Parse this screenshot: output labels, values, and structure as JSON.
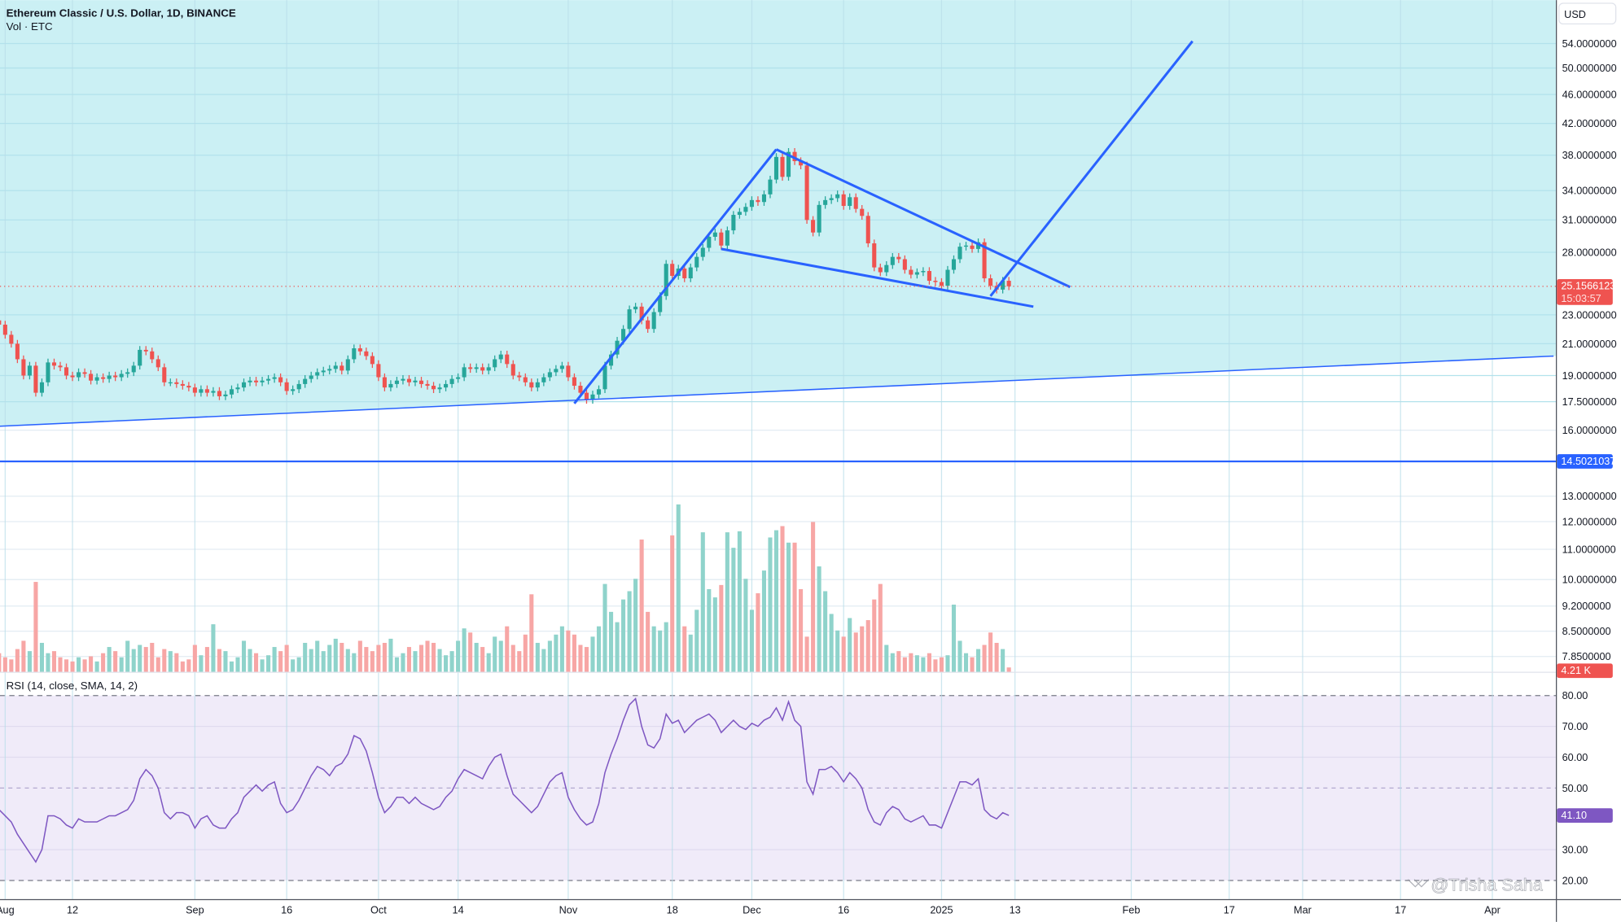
{
  "header": {
    "title": "Ethereum Classic / U.S. Dollar, 1D, BINANCE",
    "volume_legend": "Vol · ETC"
  },
  "rsi_legend": "RSI (14, close, SMA, 14, 2)",
  "currency_button": "USD",
  "watermark": "@Trisha Saha",
  "badges": {
    "last_price": "25.1566123",
    "countdown": "15:03:57",
    "hline_price": "14.5021037",
    "last_volume": "4.21 K",
    "last_rsi": "41.10"
  },
  "colors": {
    "up": "#26a69a",
    "down": "#ef5350",
    "volume_up": "#8fd3cb",
    "volume_down": "#f7a6a5",
    "drawing": "#2962ff",
    "rsi_line": "#7e57c2",
    "rsi_band": "#f0ebf9",
    "zone_fill": "#cbf0f4"
  },
  "chart_data": {
    "type": "candlestick",
    "symbol": "ETC/USD",
    "interval": "1D",
    "price_scale": "log",
    "price_ticks": [
      54,
      50,
      46,
      42,
      38,
      34,
      31,
      28,
      23,
      21,
      19,
      17.5,
      16,
      13,
      12,
      11,
      10,
      9.2,
      8.5,
      7.85
    ],
    "price_tick_labels": [
      "54.0000000",
      "50.0000000",
      "46.0000000",
      "42.0000000",
      "38.0000000",
      "34.0000000",
      "31.0000000",
      "28.0000000",
      "23.0000000",
      "21.0000000",
      "19.0000000",
      "17.5000000",
      "16.0000000",
      "13.0000000",
      "12.0000000",
      "11.0000000",
      "10.0000000",
      "9.2000000",
      "8.5000000",
      "7.8500000"
    ],
    "rsi_ticks": [
      80,
      70,
      60,
      50,
      30,
      20
    ],
    "rsi_tick_labels": [
      "80.00",
      "70.00",
      "60.00",
      "50.00",
      "30.00",
      "20.00"
    ],
    "time_ticks": [
      {
        "label": "Aug",
        "date": "2024-08-01"
      },
      {
        "label": "12",
        "date": "2024-08-12"
      },
      {
        "label": "Sep",
        "date": "2024-09-01"
      },
      {
        "label": "16",
        "date": "2024-09-16"
      },
      {
        "label": "Oct",
        "date": "2024-10-01"
      },
      {
        "label": "14",
        "date": "2024-10-14"
      },
      {
        "label": "Nov",
        "date": "2024-11-01"
      },
      {
        "label": "18",
        "date": "2024-11-18"
      },
      {
        "label": "Dec",
        "date": "2024-12-01"
      },
      {
        "label": "16",
        "date": "2024-12-16"
      },
      {
        "label": "2025",
        "date": "2025-01-01"
      },
      {
        "label": "13",
        "date": "2025-01-13"
      },
      {
        "label": "Feb",
        "date": "2025-02-01"
      },
      {
        "label": "17",
        "date": "2025-02-17"
      },
      {
        "label": "Mar",
        "date": "2025-03-01"
      },
      {
        "label": "17",
        "date": "2025-03-17"
      },
      {
        "label": "Apr",
        "date": "2025-04-01"
      }
    ],
    "last_price": 25.1566123,
    "horizontal_line": 14.5021037,
    "trendlines": [
      {
        "name": "support",
        "from": [
          "2024-07-31",
          16.2
        ],
        "to": [
          "2025-04-11",
          20.2
        ],
        "fill_above": true
      },
      {
        "name": "rally",
        "from": [
          "2024-11-02",
          17.4
        ],
        "to": [
          "2024-12-05",
          38.7
        ]
      },
      {
        "name": "wedge-upper",
        "from": [
          "2024-12-05",
          38.7
        ],
        "to": [
          "2025-01-22",
          25.1
        ]
      },
      {
        "name": "wedge-lower",
        "from": [
          "2024-11-26",
          28.3
        ],
        "to": [
          "2025-01-16",
          23.6
        ]
      },
      {
        "name": "projection",
        "from": [
          "2025-01-09",
          24.4
        ],
        "to": [
          "2025-02-11",
          54.4
        ]
      }
    ],
    "columns": [
      "date",
      "close",
      "volume_k",
      "rsi"
    ],
    "candles": [
      [
        "2024-07-31",
        22.3,
        18,
        43
      ],
      [
        "2024-08-01",
        21.6,
        14,
        41
      ],
      [
        "2024-08-02",
        21.0,
        12,
        39
      ],
      [
        "2024-08-03",
        20.0,
        22,
        35
      ],
      [
        "2024-08-04",
        19.0,
        30,
        32
      ],
      [
        "2024-08-05",
        19.6,
        20,
        29
      ],
      [
        "2024-08-06",
        18.0,
        87,
        26
      ],
      [
        "2024-08-07",
        18.6,
        28,
        30
      ],
      [
        "2024-08-08",
        19.8,
        18,
        41
      ],
      [
        "2024-08-09",
        19.6,
        20,
        41
      ],
      [
        "2024-08-10",
        19.5,
        14,
        40
      ],
      [
        "2024-08-11",
        19.0,
        12,
        38
      ],
      [
        "2024-08-12",
        18.9,
        10,
        37
      ],
      [
        "2024-08-13",
        19.2,
        14,
        40
      ],
      [
        "2024-08-14",
        19.1,
        12,
        39
      ],
      [
        "2024-08-15",
        18.7,
        15,
        39
      ],
      [
        "2024-08-16",
        18.9,
        10,
        39
      ],
      [
        "2024-08-17",
        18.8,
        18,
        40
      ],
      [
        "2024-08-18",
        19.0,
        24,
        41
      ],
      [
        "2024-08-19",
        18.9,
        20,
        41
      ],
      [
        "2024-08-20",
        19.1,
        14,
        42
      ],
      [
        "2024-08-21",
        19.2,
        30,
        43
      ],
      [
        "2024-08-22",
        19.6,
        22,
        46
      ],
      [
        "2024-08-23",
        20.6,
        26,
        53
      ],
      [
        "2024-08-24",
        20.5,
        24,
        56
      ],
      [
        "2024-08-25",
        20.0,
        28,
        54
      ],
      [
        "2024-08-26",
        19.5,
        14,
        50
      ],
      [
        "2024-08-27",
        18.6,
        22,
        42
      ],
      [
        "2024-08-28",
        18.6,
        20,
        40
      ],
      [
        "2024-08-29",
        18.5,
        18,
        42
      ],
      [
        "2024-08-30",
        18.4,
        10,
        42
      ],
      [
        "2024-08-31",
        18.3,
        12,
        41
      ],
      [
        "2024-09-01",
        18.0,
        26,
        37
      ],
      [
        "2024-09-02",
        18.2,
        16,
        40
      ],
      [
        "2024-09-03",
        18.0,
        24,
        41
      ],
      [
        "2024-09-04",
        18.1,
        46,
        38
      ],
      [
        "2024-09-05",
        17.8,
        22,
        37
      ],
      [
        "2024-09-06",
        17.9,
        20,
        37
      ],
      [
        "2024-09-07",
        18.2,
        10,
        40
      ],
      [
        "2024-09-08",
        18.3,
        14,
        42
      ],
      [
        "2024-09-09",
        18.6,
        30,
        47
      ],
      [
        "2024-09-10",
        18.7,
        22,
        49
      ],
      [
        "2024-09-11",
        18.6,
        18,
        51
      ],
      [
        "2024-09-12",
        18.7,
        12,
        49
      ],
      [
        "2024-09-13",
        18.8,
        16,
        51
      ],
      [
        "2024-09-14",
        18.9,
        24,
        52
      ],
      [
        "2024-09-15",
        18.6,
        20,
        45
      ],
      [
        "2024-09-16",
        18.1,
        26,
        42
      ],
      [
        "2024-09-17",
        18.2,
        12,
        43
      ],
      [
        "2024-09-18",
        18.5,
        14,
        46
      ],
      [
        "2024-09-19",
        18.8,
        28,
        50
      ],
      [
        "2024-09-20",
        19.0,
        22,
        54
      ],
      [
        "2024-09-21",
        19.2,
        30,
        57
      ],
      [
        "2024-09-22",
        19.3,
        20,
        56
      ],
      [
        "2024-09-23",
        19.4,
        26,
        54
      ],
      [
        "2024-09-24",
        19.6,
        32,
        57
      ],
      [
        "2024-09-25",
        19.3,
        28,
        58
      ],
      [
        "2024-09-26",
        20.0,
        22,
        61
      ],
      [
        "2024-09-27",
        20.7,
        18,
        67
      ],
      [
        "2024-09-28",
        20.5,
        30,
        66
      ],
      [
        "2024-09-29",
        20.2,
        24,
        62
      ],
      [
        "2024-09-30",
        19.7,
        20,
        55
      ],
      [
        "2024-10-01",
        18.9,
        26,
        47
      ],
      [
        "2024-10-02",
        18.3,
        28,
        42
      ],
      [
        "2024-10-03",
        18.5,
        32,
        44
      ],
      [
        "2024-10-04",
        18.7,
        14,
        47
      ],
      [
        "2024-10-05",
        18.8,
        18,
        47
      ],
      [
        "2024-10-06",
        18.6,
        24,
        45
      ],
      [
        "2024-10-07",
        18.7,
        20,
        47
      ],
      [
        "2024-10-08",
        18.5,
        26,
        45
      ],
      [
        "2024-10-09",
        18.4,
        30,
        44
      ],
      [
        "2024-10-10",
        18.2,
        28,
        43
      ],
      [
        "2024-10-11",
        18.3,
        22,
        44
      ],
      [
        "2024-10-12",
        18.5,
        16,
        47
      ],
      [
        "2024-10-13",
        18.8,
        20,
        49
      ],
      [
        "2024-10-14",
        18.9,
        30,
        53
      ],
      [
        "2024-10-15",
        19.5,
        42,
        56
      ],
      [
        "2024-10-16",
        19.4,
        38,
        55
      ],
      [
        "2024-10-17",
        19.5,
        28,
        54
      ],
      [
        "2024-10-18",
        19.3,
        24,
        53
      ],
      [
        "2024-10-19",
        19.5,
        18,
        57
      ],
      [
        "2024-10-20",
        20.0,
        34,
        60
      ],
      [
        "2024-10-21",
        20.3,
        30,
        61
      ],
      [
        "2024-10-22",
        19.7,
        44,
        54
      ],
      [
        "2024-10-23",
        19.0,
        26,
        48
      ],
      [
        "2024-10-24",
        18.9,
        20,
        46
      ],
      [
        "2024-10-25",
        18.6,
        36,
        44
      ],
      [
        "2024-10-26",
        18.3,
        75,
        42
      ],
      [
        "2024-10-27",
        18.6,
        28,
        44
      ],
      [
        "2024-10-28",
        18.9,
        22,
        48
      ],
      [
        "2024-10-29",
        19.2,
        30,
        52
      ],
      [
        "2024-10-30",
        19.4,
        36,
        54
      ],
      [
        "2024-10-31",
        19.6,
        44,
        55
      ],
      [
        "2024-11-01",
        18.9,
        40,
        47
      ],
      [
        "2024-11-02",
        18.4,
        36,
        43
      ],
      [
        "2024-11-03",
        18.0,
        26,
        40
      ],
      [
        "2024-11-04",
        17.6,
        24,
        38
      ],
      [
        "2024-11-05",
        17.9,
        34,
        39
      ],
      [
        "2024-11-06",
        18.2,
        44,
        45
      ],
      [
        "2024-11-07",
        19.6,
        85,
        55
      ],
      [
        "2024-11-08",
        20.3,
        58,
        61
      ],
      [
        "2024-11-09",
        21.2,
        48,
        66
      ],
      [
        "2024-11-10",
        22.0,
        70,
        72
      ],
      [
        "2024-11-11",
        23.4,
        78,
        77
      ],
      [
        "2024-11-12",
        23.6,
        90,
        79
      ],
      [
        "2024-11-13",
        22.6,
        128,
        70
      ],
      [
        "2024-11-14",
        22.0,
        58,
        64
      ],
      [
        "2024-11-15",
        23.2,
        44,
        63
      ],
      [
        "2024-11-16",
        24.4,
        40,
        66
      ],
      [
        "2024-11-17",
        27.0,
        48,
        74
      ],
      [
        "2024-11-18",
        26.0,
        132,
        71
      ],
      [
        "2024-11-19",
        26.6,
        162,
        72
      ],
      [
        "2024-11-20",
        25.8,
        44,
        68
      ],
      [
        "2024-11-21",
        26.7,
        36,
        70
      ],
      [
        "2024-11-22",
        27.6,
        60,
        72
      ],
      [
        "2024-11-23",
        28.4,
        135,
        73
      ],
      [
        "2024-11-24",
        29.4,
        80,
        74
      ],
      [
        "2024-11-25",
        29.8,
        72,
        72
      ],
      [
        "2024-11-26",
        28.6,
        84,
        68
      ],
      [
        "2024-11-27",
        30.0,
        135,
        70
      ],
      [
        "2024-11-28",
        31.5,
        120,
        72
      ],
      [
        "2024-11-29",
        31.8,
        136,
        70
      ],
      [
        "2024-11-30",
        32.3,
        90,
        69
      ],
      [
        "2024-12-01",
        33.0,
        60,
        71
      ],
      [
        "2024-12-02",
        32.8,
        76,
        70
      ],
      [
        "2024-12-03",
        33.6,
        98,
        72
      ],
      [
        "2024-12-04",
        35.2,
        130,
        73
      ],
      [
        "2024-12-05",
        37.8,
        137,
        76
      ],
      [
        "2024-12-06",
        35.5,
        141,
        72
      ],
      [
        "2024-12-07",
        38.4,
        125,
        78
      ],
      [
        "2024-12-08",
        37.3,
        125,
        72
      ],
      [
        "2024-12-09",
        36.8,
        80,
        70
      ],
      [
        "2024-12-10",
        31.0,
        34,
        52
      ],
      [
        "2024-12-11",
        29.8,
        145,
        48
      ],
      [
        "2024-12-12",
        32.5,
        102,
        56
      ],
      [
        "2024-12-13",
        33.0,
        78,
        56
      ],
      [
        "2024-12-14",
        33.2,
        56,
        57
      ],
      [
        "2024-12-15",
        33.6,
        40,
        55
      ],
      [
        "2024-12-16",
        32.4,
        34,
        52
      ],
      [
        "2024-12-17",
        33.3,
        52,
        55
      ],
      [
        "2024-12-18",
        32.1,
        38,
        53
      ],
      [
        "2024-12-19",
        31.4,
        44,
        50
      ],
      [
        "2024-12-20",
        28.8,
        50,
        43
      ],
      [
        "2024-12-21",
        26.7,
        70,
        39
      ],
      [
        "2024-12-22",
        26.3,
        85,
        38
      ],
      [
        "2024-12-23",
        26.9,
        26,
        42
      ],
      [
        "2024-12-24",
        27.6,
        18,
        44
      ],
      [
        "2024-12-25",
        27.4,
        20,
        43
      ],
      [
        "2024-12-26",
        26.5,
        14,
        40
      ],
      [
        "2024-12-27",
        26.1,
        18,
        39
      ],
      [
        "2024-12-28",
        26.3,
        16,
        40
      ],
      [
        "2024-12-29",
        26.4,
        14,
        41
      ],
      [
        "2024-12-30",
        25.6,
        18,
        38
      ],
      [
        "2024-12-31",
        25.5,
        12,
        38
      ],
      [
        "2025-01-01",
        25.2,
        14,
        37
      ],
      [
        "2025-01-02",
        26.5,
        16,
        42
      ],
      [
        "2025-01-03",
        27.4,
        65,
        47
      ],
      [
        "2025-01-04",
        28.5,
        30,
        52
      ],
      [
        "2025-01-05",
        28.6,
        18,
        52
      ],
      [
        "2025-01-06",
        28.3,
        14,
        51
      ],
      [
        "2025-01-07",
        28.9,
        22,
        53
      ],
      [
        "2025-01-08",
        25.8,
        26,
        43
      ],
      [
        "2025-01-09",
        25.2,
        38,
        41
      ],
      [
        "2025-01-10",
        24.9,
        28,
        40
      ],
      [
        "2025-01-11",
        25.6,
        22,
        42
      ],
      [
        "2025-01-12",
        25.16,
        4.21,
        41.1
      ]
    ]
  }
}
